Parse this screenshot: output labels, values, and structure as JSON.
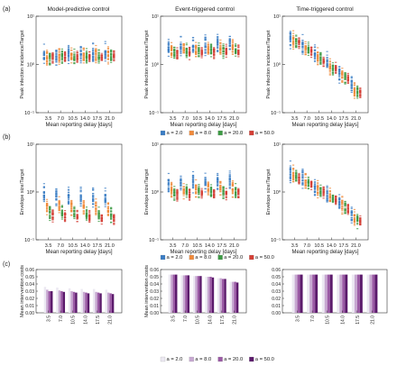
{
  "figure": {
    "panel_labels": [
      "(a)",
      "(b)",
      "(c)"
    ],
    "column_titles": [
      "Model-predictive control",
      "Event-triggered control",
      "Time-triggered control"
    ],
    "xlabel": "Mean reporting delay [days]",
    "x_ticks": [
      "3.5",
      "7.0",
      "10.5",
      "14.0",
      "17.5",
      "21.0"
    ],
    "legend_top": {
      "entries": [
        "a = 2.0",
        "a = 8.0",
        "a = 20.0",
        "a = 50.0"
      ],
      "colors": [
        "#3b7dc4",
        "#f08a3a",
        "#3d9a44",
        "#d43f35"
      ]
    },
    "legend_bottom": {
      "entries": [
        "a = 2.0",
        "a = 8.0",
        "a = 20.0",
        "a = 50.0"
      ],
      "colors": [
        "#ece9f2",
        "#c7a8d1",
        "#9b5aa5",
        "#5b1a6b"
      ]
    }
  },
  "chart_data": [
    {
      "type": "scatter",
      "panel": "(a)",
      "title": "Model-predictive control",
      "xlabel": "Mean reporting delay [days]",
      "ylabel": "Peak infection incidence/Target",
      "yscale": "log",
      "ylim": [
        0.1,
        10
      ],
      "y_tick_labels": [
        "10⁻¹",
        "10⁰",
        "10¹"
      ],
      "categories": [
        "3.5",
        "7.0",
        "10.5",
        "14.0",
        "17.5",
        "21.0"
      ],
      "series": [
        {
          "name": "a = 2.0",
          "values": [
            1.55,
            1.6,
            1.65,
            1.7,
            1.75,
            1.8
          ]
        },
        {
          "name": "a = 8.0",
          "values": [
            1.45,
            1.5,
            1.5,
            1.55,
            1.6,
            1.6
          ]
        },
        {
          "name": "a = 20.0",
          "values": [
            1.4,
            1.45,
            1.45,
            1.5,
            1.5,
            1.55
          ]
        },
        {
          "name": "a = 50.0",
          "values": [
            1.4,
            1.4,
            1.45,
            1.45,
            1.5,
            1.5
          ]
        }
      ]
    },
    {
      "type": "scatter",
      "panel": "(a)",
      "title": "Event-triggered control",
      "xlabel": "Mean reporting delay [days]",
      "ylabel": "Peak infection incidence/Target",
      "yscale": "log",
      "ylim": [
        0.1,
        10
      ],
      "y_tick_labels": [
        "10⁻¹",
        "10⁰",
        "10¹"
      ],
      "categories": [
        "3.5",
        "7.0",
        "10.5",
        "14.0",
        "17.5",
        "21.0"
      ],
      "series": [
        {
          "name": "a = 2.0",
          "values": [
            2.2,
            2.3,
            2.4,
            2.5,
            2.6,
            2.7
          ]
        },
        {
          "name": "a = 8.0",
          "values": [
            1.9,
            2.0,
            2.0,
            2.1,
            2.1,
            2.2
          ]
        },
        {
          "name": "a = 20.0",
          "values": [
            1.8,
            1.85,
            1.9,
            1.9,
            2.0,
            2.0
          ]
        },
        {
          "name": "a = 50.0",
          "values": [
            1.7,
            1.75,
            1.8,
            1.85,
            1.9,
            1.9
          ]
        }
      ]
    },
    {
      "type": "scatter",
      "panel": "(a)",
      "title": "Time-triggered control",
      "xlabel": "Mean reporting delay [days]",
      "ylabel": "Peak infection incidence/Target",
      "yscale": "log",
      "ylim": [
        0.1,
        10
      ],
      "y_tick_labels": [
        "10⁻¹",
        "10⁰",
        "10¹"
      ],
      "categories": [
        "3.5",
        "7.0",
        "10.5",
        "14.0",
        "17.5",
        "21.0"
      ],
      "series": [
        {
          "name": "a = 2.0",
          "values": [
            3.6,
            2.5,
            1.6,
            1.1,
            0.7,
            0.35
          ]
        },
        {
          "name": "a = 8.0",
          "values": [
            3.2,
            2.2,
            1.4,
            0.95,
            0.6,
            0.3
          ]
        },
        {
          "name": "a = 20.0",
          "values": [
            3.0,
            2.0,
            1.3,
            0.85,
            0.55,
            0.28
          ]
        },
        {
          "name": "a = 50.0",
          "values": [
            2.8,
            1.9,
            1.2,
            0.8,
            0.5,
            0.26
          ]
        }
      ]
    },
    {
      "type": "scatter",
      "panel": "(b)",
      "title": "",
      "xlabel": "Mean reporting delay [days]",
      "ylabel": "Envelope size/Target",
      "yscale": "log",
      "ylim": [
        0.1,
        10
      ],
      "y_tick_labels": [
        "10⁻¹",
        "10⁰",
        "10¹"
      ],
      "categories": [
        "3.5",
        "7.0",
        "10.5",
        "14.0",
        "17.5",
        "21.0"
      ],
      "series": [
        {
          "name": "a = 2.0",
          "values": [
            0.85,
            0.8,
            0.8,
            0.8,
            0.75,
            0.75
          ]
        },
        {
          "name": "a = 8.0",
          "values": [
            0.5,
            0.5,
            0.48,
            0.47,
            0.46,
            0.45
          ]
        },
        {
          "name": "a = 20.0",
          "values": [
            0.38,
            0.37,
            0.36,
            0.35,
            0.34,
            0.33
          ]
        },
        {
          "name": "a = 50.0",
          "values": [
            0.33,
            0.32,
            0.31,
            0.3,
            0.29,
            0.28
          ]
        }
      ]
    },
    {
      "type": "scatter",
      "panel": "(b)",
      "title": "",
      "xlabel": "Mean reporting delay [days]",
      "ylabel": "Envelope size/Target",
      "yscale": "log",
      "ylim": [
        0.1,
        10
      ],
      "y_tick_labels": [
        "10⁻¹",
        "10⁰",
        "10¹"
      ],
      "categories": [
        "3.5",
        "7.0",
        "10.5",
        "14.0",
        "17.5",
        "21.0"
      ],
      "series": [
        {
          "name": "a = 2.0",
          "values": [
            1.5,
            1.6,
            1.6,
            1.65,
            1.7,
            1.75
          ]
        },
        {
          "name": "a = 8.0",
          "values": [
            1.1,
            1.15,
            1.15,
            1.2,
            1.2,
            1.2
          ]
        },
        {
          "name": "a = 20.0",
          "values": [
            0.95,
            1.0,
            1.0,
            1.0,
            1.05,
            1.05
          ]
        },
        {
          "name": "a = 50.0",
          "values": [
            0.9,
            0.9,
            0.95,
            0.95,
            0.95,
            1.0
          ]
        }
      ]
    },
    {
      "type": "scatter",
      "panel": "(b)",
      "title": "",
      "xlabel": "Mean reporting delay [days]",
      "ylabel": "Envelope size/Target",
      "yscale": "log",
      "ylim": [
        0.1,
        10
      ],
      "y_tick_labels": [
        "10⁻¹",
        "10⁰",
        "10¹"
      ],
      "categories": [
        "3.5",
        "7.0",
        "10.5",
        "14.0",
        "17.5",
        "21.0"
      ],
      "series": [
        {
          "name": "a = 2.0",
          "values": [
            2.6,
            1.9,
            1.3,
            0.9,
            0.6,
            0.32
          ]
        },
        {
          "name": "a = 8.0",
          "values": [
            2.3,
            1.7,
            1.15,
            0.8,
            0.53,
            0.28
          ]
        },
        {
          "name": "a = 20.0",
          "values": [
            2.1,
            1.55,
            1.05,
            0.73,
            0.48,
            0.26
          ]
        },
        {
          "name": "a = 50.0",
          "values": [
            2.0,
            1.45,
            1.0,
            0.7,
            0.45,
            0.24
          ]
        }
      ]
    },
    {
      "type": "bar",
      "panel": "(c)",
      "title": "",
      "xlabel": "Mean reporting delay [days]",
      "ylabel": "Mean intervention costs",
      "ylim": [
        0,
        0.06
      ],
      "y_ticks": [
        "0.00",
        "0.01",
        "0.02",
        "0.03",
        "0.04",
        "0.05",
        "0.06"
      ],
      "categories": [
        "3.5",
        "7.0",
        "10.5",
        "14.0",
        "17.5",
        "21.0"
      ],
      "series": [
        {
          "name": "a = 2.0",
          "values": [
            0.036,
            0.035,
            0.034,
            0.033,
            0.033,
            0.032
          ]
        },
        {
          "name": "a = 8.0",
          "values": [
            0.032,
            0.031,
            0.03,
            0.029,
            0.029,
            0.028
          ]
        },
        {
          "name": "a = 20.0",
          "values": [
            0.03,
            0.03,
            0.029,
            0.028,
            0.028,
            0.027
          ]
        },
        {
          "name": "a = 50.0",
          "values": [
            0.03,
            0.029,
            0.028,
            0.027,
            0.027,
            0.026
          ]
        }
      ]
    },
    {
      "type": "bar",
      "panel": "(c)",
      "title": "",
      "xlabel": "Mean reporting delay [days]",
      "ylabel": "Mean intervention costs",
      "ylim": [
        0,
        0.06
      ],
      "y_ticks": [
        "0.00",
        "0.01",
        "0.02",
        "0.03",
        "0.04",
        "0.05",
        "0.06"
      ],
      "categories": [
        "3.5",
        "7.0",
        "10.5",
        "14.0",
        "17.5",
        "21.0"
      ],
      "series": [
        {
          "name": "a = 2.0",
          "values": [
            0.053,
            0.052,
            0.051,
            0.05,
            0.048,
            0.043
          ]
        },
        {
          "name": "a = 8.0",
          "values": [
            0.053,
            0.052,
            0.051,
            0.05,
            0.048,
            0.043
          ]
        },
        {
          "name": "a = 20.0",
          "values": [
            0.053,
            0.052,
            0.051,
            0.05,
            0.047,
            0.043
          ]
        },
        {
          "name": "a = 50.0",
          "values": [
            0.053,
            0.052,
            0.051,
            0.049,
            0.047,
            0.042
          ]
        }
      ]
    },
    {
      "type": "bar",
      "panel": "(c)",
      "title": "",
      "xlabel": "Mean reporting delay [days]",
      "ylabel": "",
      "ylim": [
        0,
        0.06
      ],
      "y_ticks": [
        "0.00",
        "0.01",
        "0.02",
        "0.03",
        "0.04",
        "0.05",
        "0.06"
      ],
      "categories": [
        "3.5",
        "7.0",
        "10.5",
        "14.0",
        "17.5",
        "21.0"
      ],
      "series": [
        {
          "name": "a = 2.0",
          "values": [
            0.053,
            0.053,
            0.053,
            0.053,
            0.053,
            0.053
          ]
        },
        {
          "name": "a = 8.0",
          "values": [
            0.053,
            0.053,
            0.053,
            0.053,
            0.053,
            0.053
          ]
        },
        {
          "name": "a = 20.0",
          "values": [
            0.053,
            0.053,
            0.053,
            0.053,
            0.053,
            0.053
          ]
        },
        {
          "name": "a = 50.0",
          "values": [
            0.053,
            0.053,
            0.053,
            0.053,
            0.053,
            0.053
          ]
        }
      ]
    }
  ]
}
